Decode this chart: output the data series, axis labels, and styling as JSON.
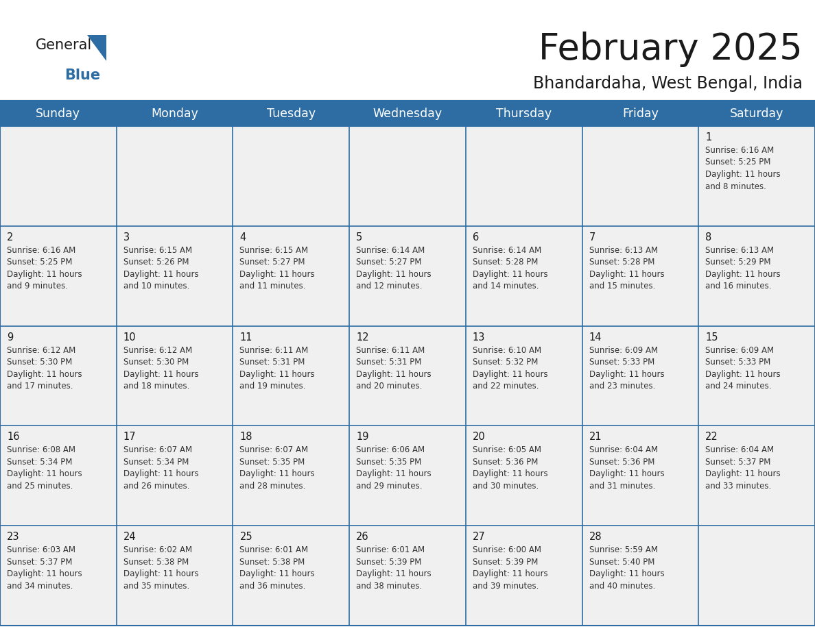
{
  "title": "February 2025",
  "subtitle": "Bhandardaha, West Bengal, India",
  "header_bg": "#2E6DA4",
  "header_text": "#FFFFFF",
  "cell_bg": "#F0F0F0",
  "border_color": "#2E6DA4",
  "text_color": "#333333",
  "day_num_color": "#1a1a1a",
  "day_headers": [
    "Sunday",
    "Monday",
    "Tuesday",
    "Wednesday",
    "Thursday",
    "Friday",
    "Saturday"
  ],
  "title_fontsize": 38,
  "subtitle_fontsize": 17,
  "header_fontsize": 12.5,
  "day_num_fontsize": 10.5,
  "cell_text_fontsize": 8.5,
  "calendar_data": [
    [
      null,
      null,
      null,
      null,
      null,
      null,
      {
        "day": "1",
        "sunrise": "6:16 AM",
        "sunset": "5:25 PM",
        "daylight_line1": "Daylight: 11 hours",
        "daylight_line2": "and 8 minutes."
      }
    ],
    [
      {
        "day": "2",
        "sunrise": "6:16 AM",
        "sunset": "5:25 PM",
        "daylight_line1": "Daylight: 11 hours",
        "daylight_line2": "and 9 minutes."
      },
      {
        "day": "3",
        "sunrise": "6:15 AM",
        "sunset": "5:26 PM",
        "daylight_line1": "Daylight: 11 hours",
        "daylight_line2": "and 10 minutes."
      },
      {
        "day": "4",
        "sunrise": "6:15 AM",
        "sunset": "5:27 PM",
        "daylight_line1": "Daylight: 11 hours",
        "daylight_line2": "and 11 minutes."
      },
      {
        "day": "5",
        "sunrise": "6:14 AM",
        "sunset": "5:27 PM",
        "daylight_line1": "Daylight: 11 hours",
        "daylight_line2": "and 12 minutes."
      },
      {
        "day": "6",
        "sunrise": "6:14 AM",
        "sunset": "5:28 PM",
        "daylight_line1": "Daylight: 11 hours",
        "daylight_line2": "and 14 minutes."
      },
      {
        "day": "7",
        "sunrise": "6:13 AM",
        "sunset": "5:28 PM",
        "daylight_line1": "Daylight: 11 hours",
        "daylight_line2": "and 15 minutes."
      },
      {
        "day": "8",
        "sunrise": "6:13 AM",
        "sunset": "5:29 PM",
        "daylight_line1": "Daylight: 11 hours",
        "daylight_line2": "and 16 minutes."
      }
    ],
    [
      {
        "day": "9",
        "sunrise": "6:12 AM",
        "sunset": "5:30 PM",
        "daylight_line1": "Daylight: 11 hours",
        "daylight_line2": "and 17 minutes."
      },
      {
        "day": "10",
        "sunrise": "6:12 AM",
        "sunset": "5:30 PM",
        "daylight_line1": "Daylight: 11 hours",
        "daylight_line2": "and 18 minutes."
      },
      {
        "day": "11",
        "sunrise": "6:11 AM",
        "sunset": "5:31 PM",
        "daylight_line1": "Daylight: 11 hours",
        "daylight_line2": "and 19 minutes."
      },
      {
        "day": "12",
        "sunrise": "6:11 AM",
        "sunset": "5:31 PM",
        "daylight_line1": "Daylight: 11 hours",
        "daylight_line2": "and 20 minutes."
      },
      {
        "day": "13",
        "sunrise": "6:10 AM",
        "sunset": "5:32 PM",
        "daylight_line1": "Daylight: 11 hours",
        "daylight_line2": "and 22 minutes."
      },
      {
        "day": "14",
        "sunrise": "6:09 AM",
        "sunset": "5:33 PM",
        "daylight_line1": "Daylight: 11 hours",
        "daylight_line2": "and 23 minutes."
      },
      {
        "day": "15",
        "sunrise": "6:09 AM",
        "sunset": "5:33 PM",
        "daylight_line1": "Daylight: 11 hours",
        "daylight_line2": "and 24 minutes."
      }
    ],
    [
      {
        "day": "16",
        "sunrise": "6:08 AM",
        "sunset": "5:34 PM",
        "daylight_line1": "Daylight: 11 hours",
        "daylight_line2": "and 25 minutes."
      },
      {
        "day": "17",
        "sunrise": "6:07 AM",
        "sunset": "5:34 PM",
        "daylight_line1": "Daylight: 11 hours",
        "daylight_line2": "and 26 minutes."
      },
      {
        "day": "18",
        "sunrise": "6:07 AM",
        "sunset": "5:35 PM",
        "daylight_line1": "Daylight: 11 hours",
        "daylight_line2": "and 28 minutes."
      },
      {
        "day": "19",
        "sunrise": "6:06 AM",
        "sunset": "5:35 PM",
        "daylight_line1": "Daylight: 11 hours",
        "daylight_line2": "and 29 minutes."
      },
      {
        "day": "20",
        "sunrise": "6:05 AM",
        "sunset": "5:36 PM",
        "daylight_line1": "Daylight: 11 hours",
        "daylight_line2": "and 30 minutes."
      },
      {
        "day": "21",
        "sunrise": "6:04 AM",
        "sunset": "5:36 PM",
        "daylight_line1": "Daylight: 11 hours",
        "daylight_line2": "and 31 minutes."
      },
      {
        "day": "22",
        "sunrise": "6:04 AM",
        "sunset": "5:37 PM",
        "daylight_line1": "Daylight: 11 hours",
        "daylight_line2": "and 33 minutes."
      }
    ],
    [
      {
        "day": "23",
        "sunrise": "6:03 AM",
        "sunset": "5:37 PM",
        "daylight_line1": "Daylight: 11 hours",
        "daylight_line2": "and 34 minutes."
      },
      {
        "day": "24",
        "sunrise": "6:02 AM",
        "sunset": "5:38 PM",
        "daylight_line1": "Daylight: 11 hours",
        "daylight_line2": "and 35 minutes."
      },
      {
        "day": "25",
        "sunrise": "6:01 AM",
        "sunset": "5:38 PM",
        "daylight_line1": "Daylight: 11 hours",
        "daylight_line2": "and 36 minutes."
      },
      {
        "day": "26",
        "sunrise": "6:01 AM",
        "sunset": "5:39 PM",
        "daylight_line1": "Daylight: 11 hours",
        "daylight_line2": "and 38 minutes."
      },
      {
        "day": "27",
        "sunrise": "6:00 AM",
        "sunset": "5:39 PM",
        "daylight_line1": "Daylight: 11 hours",
        "daylight_line2": "and 39 minutes."
      },
      {
        "day": "28",
        "sunrise": "5:59 AM",
        "sunset": "5:40 PM",
        "daylight_line1": "Daylight: 11 hours",
        "daylight_line2": "and 40 minutes."
      },
      null
    ]
  ]
}
